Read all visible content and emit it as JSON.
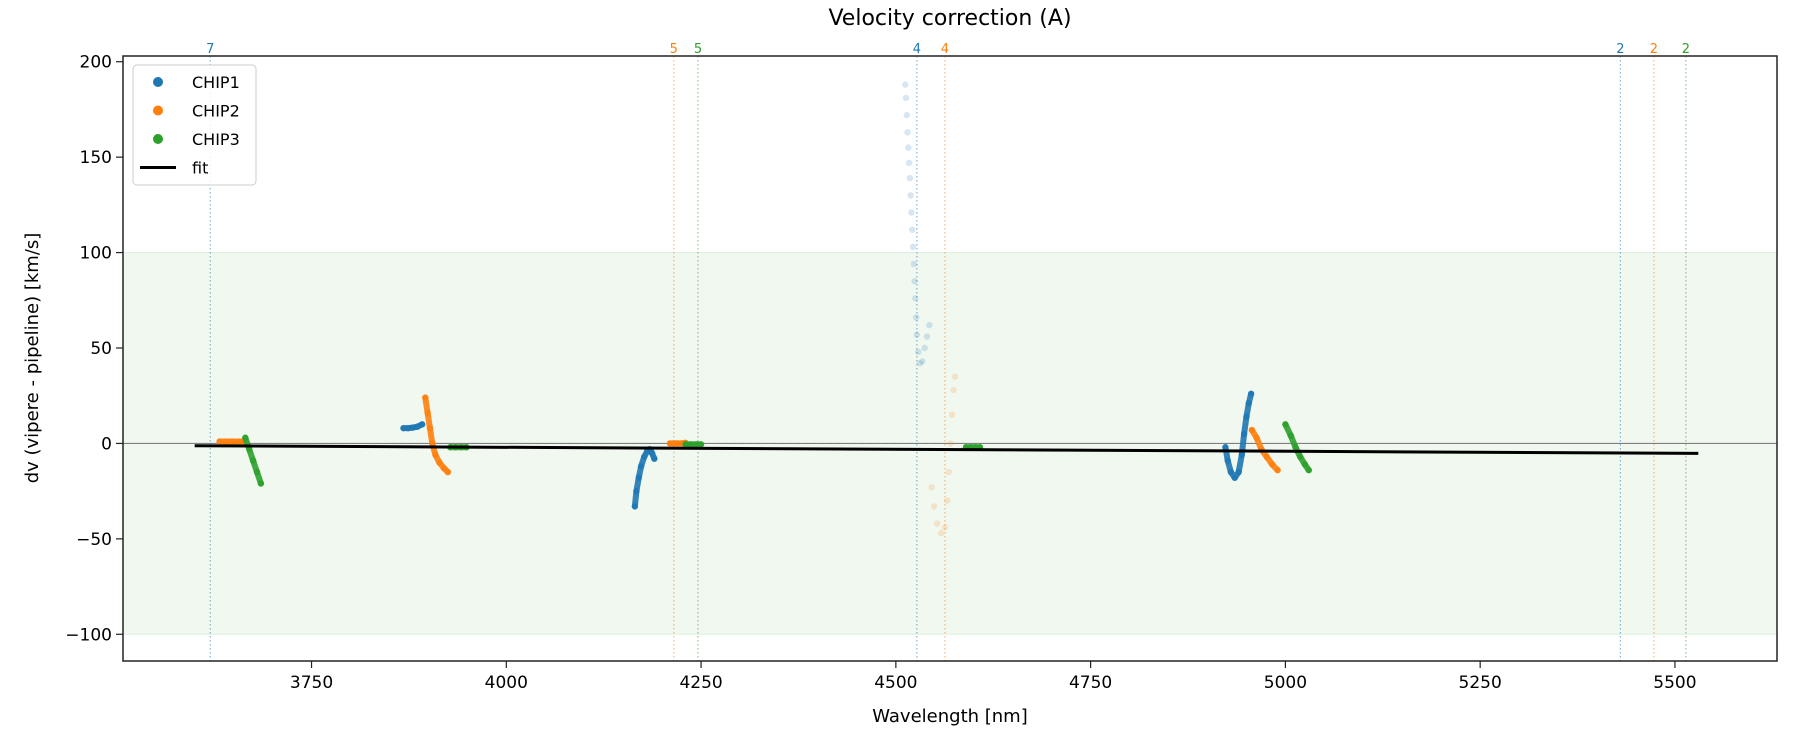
{
  "chart_data": {
    "type": "scatter",
    "title": "Velocity correction (A)",
    "xlabel": "Wavelength [nm]",
    "ylabel": "dv (vipere - pipeline) [km/s]",
    "xlim": [
      3508,
      5631
    ],
    "ylim": [
      -114,
      203
    ],
    "xticks": [
      3750,
      4000,
      4250,
      4500,
      4750,
      5000,
      5250,
      5500
    ],
    "yticks": [
      -100,
      -50,
      0,
      50,
      100,
      150,
      200
    ],
    "grid": false,
    "legend_position": "top-left",
    "shaded_band": {
      "y": [
        -100,
        100
      ],
      "color": "#2ca02c"
    },
    "zero_line": 0,
    "colors": {
      "CHIP1": "#1f77b4",
      "CHIP2": "#ff7f0e",
      "CHIP3": "#2ca02c",
      "fit": "#000000"
    },
    "order_markers": [
      {
        "x": 3620,
        "label": "7",
        "series": "CHIP1"
      },
      {
        "x": 4215,
        "label": "5",
        "series": "CHIP2"
      },
      {
        "x": 4246,
        "label": "5",
        "series": "CHIP3"
      },
      {
        "x": 4527,
        "label": "4",
        "series": "CHIP1"
      },
      {
        "x": 4563,
        "label": "4",
        "series": "CHIP2"
      },
      {
        "x": 5430,
        "label": "2",
        "series": "CHIP1"
      },
      {
        "x": 5473,
        "label": "2",
        "series": "CHIP2"
      },
      {
        "x": 5514,
        "label": "2",
        "series": "CHIP3"
      }
    ],
    "series": [
      {
        "name": "CHIP1",
        "segments": [
          {
            "faded": false,
            "points": [
              [
                3868,
                8
              ],
              [
                3874,
                8
              ],
              [
                3880,
                8.3
              ],
              [
                3886,
                8.8
              ],
              [
                3892,
                10
              ]
            ]
          },
          {
            "faded": false,
            "points": [
              [
                4165,
                -33
              ],
              [
                4167,
                -25
              ],
              [
                4170,
                -18
              ],
              [
                4173,
                -12
              ],
              [
                4177,
                -7
              ],
              [
                4181,
                -4
              ],
              [
                4184,
                -3
              ],
              [
                4187,
                -5
              ],
              [
                4190,
                -8
              ]
            ]
          },
          {
            "faded": true,
            "points": [
              [
                4512,
                188
              ],
              [
                4513,
                181
              ],
              [
                4514,
                172
              ],
              [
                4515,
                163
              ],
              [
                4516,
                155
              ],
              [
                4517,
                147
              ],
              [
                4518,
                139
              ],
              [
                4519,
                130
              ],
              [
                4520,
                121
              ],
              [
                4521,
                112
              ],
              [
                4522,
                103
              ],
              [
                4523,
                94
              ],
              [
                4524,
                85
              ],
              [
                4525,
                76
              ],
              [
                4526,
                66
              ],
              [
                4527,
                57
              ],
              [
                4529,
                48
              ],
              [
                4531,
                42
              ],
              [
                4534,
                43
              ],
              [
                4537,
                50
              ],
              [
                4540,
                56
              ],
              [
                4543,
                62
              ]
            ]
          },
          {
            "faded": false,
            "points": [
              [
                4923,
                -2
              ],
              [
                4926,
                -9
              ],
              [
                4930,
                -15
              ],
              [
                4935,
                -18
              ],
              [
                4940,
                -15
              ],
              [
                4944,
                -6
              ],
              [
                4947,
                5
              ],
              [
                4950,
                14
              ],
              [
                4953,
                21
              ],
              [
                4956,
                26
              ]
            ]
          }
        ]
      },
      {
        "name": "CHIP2",
        "segments": [
          {
            "faded": false,
            "points": [
              [
                3632,
                1
              ],
              [
                3640,
                1
              ],
              [
                3648,
                1
              ],
              [
                3656,
                1
              ],
              [
                3662,
                1
              ]
            ]
          },
          {
            "faded": false,
            "points": [
              [
                3896,
                24
              ],
              [
                3899,
                16
              ],
              [
                3902,
                8
              ],
              [
                3905,
                0
              ],
              [
                3909,
                -6
              ],
              [
                3914,
                -10
              ],
              [
                3920,
                -13
              ],
              [
                3925,
                -15
              ]
            ]
          },
          {
            "faded": false,
            "points": [
              [
                4210,
                0
              ],
              [
                4215,
                0
              ],
              [
                4220,
                0
              ],
              [
                4225,
                0
              ],
              [
                4230,
                0.3
              ]
            ]
          },
          {
            "faded": true,
            "points": [
              [
                4546,
                -23
              ],
              [
                4549,
                -33
              ],
              [
                4553,
                -42
              ],
              [
                4558,
                -47
              ],
              [
                4563,
                -44
              ],
              [
                4566,
                -30
              ],
              [
                4568,
                -15
              ],
              [
                4570,
                0
              ],
              [
                4572,
                15
              ],
              [
                4574,
                28
              ],
              [
                4576,
                35
              ]
            ]
          },
          {
            "faded": false,
            "points": [
              [
                4957,
                7
              ],
              [
                4963,
                3
              ],
              [
                4969,
                -3
              ],
              [
                4976,
                -7
              ],
              [
                4983,
                -11
              ],
              [
                4990,
                -14
              ]
            ]
          }
        ]
      },
      {
        "name": "CHIP3",
        "segments": [
          {
            "faded": false,
            "points": [
              [
                3665,
                3
              ],
              [
                3670,
                -3
              ],
              [
                3675,
                -9
              ],
              [
                3680,
                -15
              ],
              [
                3685,
                -21
              ]
            ]
          },
          {
            "faded": false,
            "points": [
              [
                3928,
                -2
              ],
              [
                3935,
                -2
              ],
              [
                3942,
                -2
              ],
              [
                3949,
                -2
              ]
            ]
          },
          {
            "faded": false,
            "points": [
              [
                4230,
                -0.5
              ],
              [
                4237,
                -0.5
              ],
              [
                4244,
                -0.5
              ],
              [
                4250,
                -0.5
              ]
            ]
          },
          {
            "faded": false,
            "points": [
              [
                4590,
                -2
              ],
              [
                4596,
                -2
              ],
              [
                4602,
                -2
              ],
              [
                4608,
                -2
              ]
            ]
          },
          {
            "faded": false,
            "points": [
              [
                5000,
                10
              ],
              [
                5007,
                4
              ],
              [
                5013,
                -2
              ],
              [
                5019,
                -7
              ],
              [
                5025,
                -11
              ],
              [
                5030,
                -14
              ]
            ]
          }
        ]
      }
    ],
    "fit": {
      "name": "fit",
      "x": [
        3600,
        5530
      ],
      "y": [
        -1.2,
        -5.2
      ]
    },
    "legend": [
      "CHIP1",
      "CHIP2",
      "CHIP3",
      "fit"
    ]
  }
}
